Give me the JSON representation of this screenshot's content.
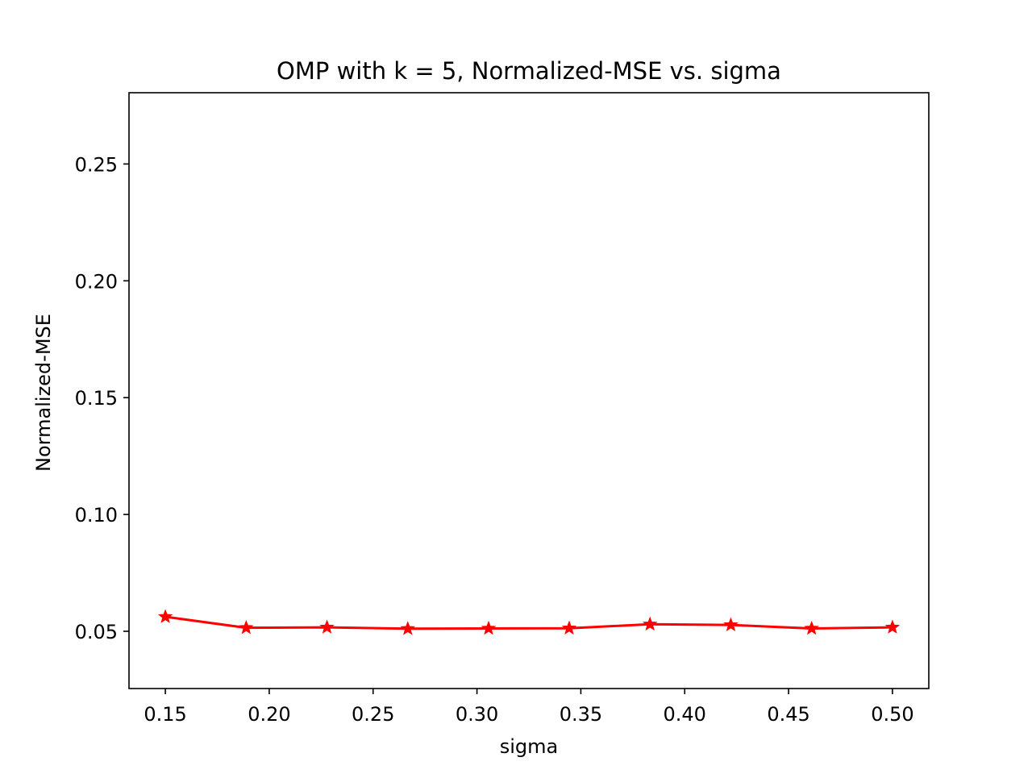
{
  "chart_data": {
    "type": "line",
    "title": "OMP with k = 5, Normalized-MSE vs. sigma",
    "xlabel": "sigma",
    "ylabel": "Normalized-MSE",
    "xlim": [
      0.1325,
      0.5175
    ],
    "ylim": [
      0.0255,
      0.2805
    ],
    "xticks": [
      0.15,
      0.2,
      0.25,
      0.3,
      0.35,
      0.4,
      0.45,
      0.5
    ],
    "xtick_labels": [
      "0.15",
      "0.20",
      "0.25",
      "0.30",
      "0.35",
      "0.40",
      "0.45",
      "0.50"
    ],
    "yticks": [
      0.05,
      0.1,
      0.15,
      0.2,
      0.25
    ],
    "ytick_labels": [
      "0.05",
      "0.10",
      "0.15",
      "0.20",
      "0.25"
    ],
    "grid": false,
    "series": [
      {
        "color": "#ff0000",
        "marker": "star",
        "x": [
          0.15,
          0.1889,
          0.2278,
          0.2667,
          0.3056,
          0.3444,
          0.3833,
          0.4222,
          0.4611,
          0.5
        ],
        "y": [
          0.0562,
          0.0515,
          0.0517,
          0.0511,
          0.0512,
          0.0513,
          0.053,
          0.0527,
          0.0512,
          0.0517
        ]
      }
    ]
  }
}
